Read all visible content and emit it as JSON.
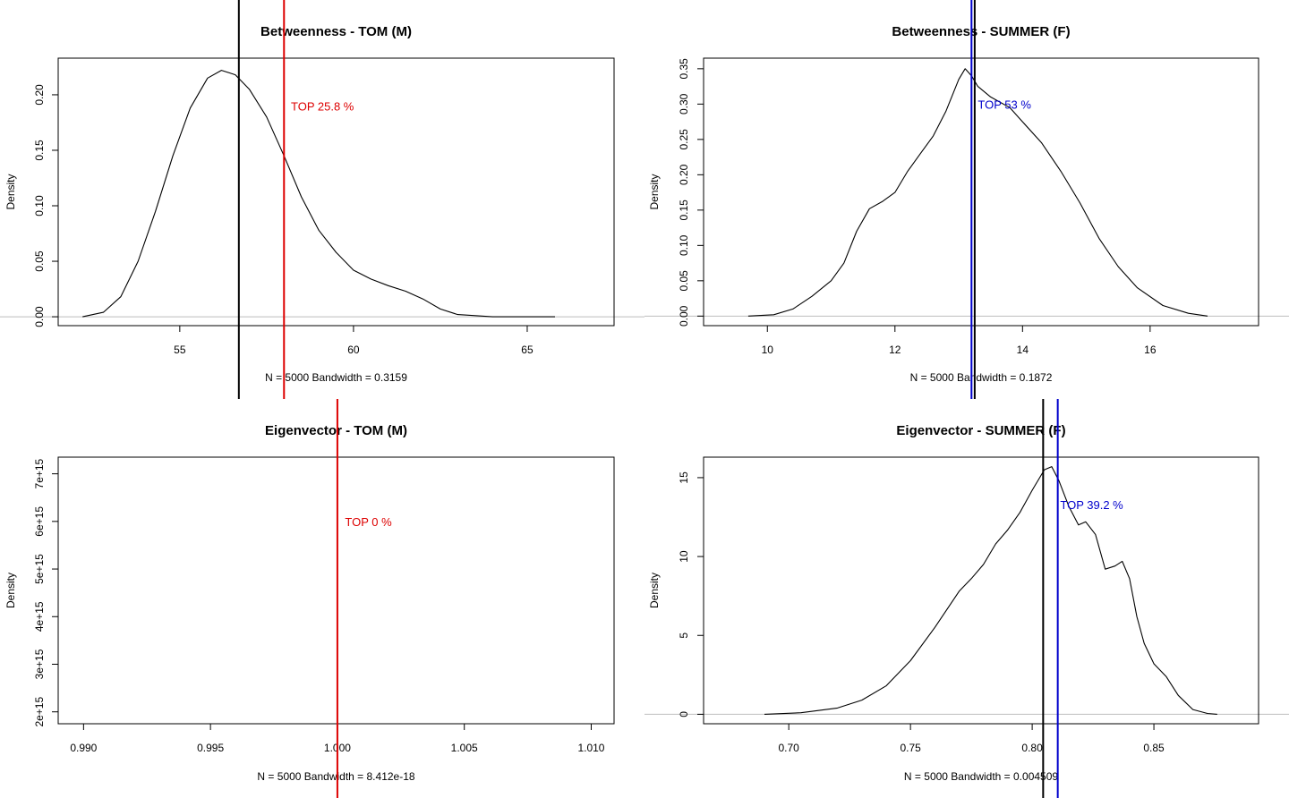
{
  "chart_data": [
    {
      "type": "line",
      "title": "Betweenness - TOM (M)",
      "xlabel": "N = 5000   Bandwidth = 0.3159",
      "ylabel": "Density",
      "xlim": [
        51.5,
        67.5
      ],
      "ylim": [
        -0.008,
        0.233
      ],
      "xticks": [
        55,
        60,
        65
      ],
      "xtick_labels": [
        "55",
        "60",
        "65"
      ],
      "yticks": [
        0.0,
        0.05,
        0.1,
        0.15,
        0.2
      ],
      "ytick_labels": [
        "0.00",
        "0.05",
        "0.10",
        "0.15",
        "0.20"
      ],
      "series": [
        {
          "x": [
            52.2,
            52.8,
            53.3,
            53.8,
            54.3,
            54.8,
            55.3,
            55.8,
            56.2,
            56.6,
            57.0,
            57.5,
            58.0,
            58.5,
            59.0,
            59.5,
            60.0,
            60.5,
            61.0,
            61.5,
            62.0,
            62.5,
            63.0,
            64.0,
            65.0,
            65.8
          ],
          "y": [
            0.0,
            0.004,
            0.018,
            0.05,
            0.095,
            0.145,
            0.188,
            0.215,
            0.222,
            0.218,
            0.205,
            0.18,
            0.145,
            0.108,
            0.078,
            0.058,
            0.042,
            0.034,
            0.028,
            0.023,
            0.016,
            0.007,
            0.002,
            0.0,
            0.0,
            0.0
          ]
        }
      ],
      "vlines": [
        {
          "x": 56.7,
          "color": "#000000"
        },
        {
          "x": 58.0,
          "color": "#dd0000"
        }
      ],
      "annotation": {
        "text": "TOP 25.8 %",
        "x": 58.2,
        "y": 0.19,
        "color": "#dd0000"
      }
    },
    {
      "type": "line",
      "title": "Betweenness - SUMMER (F)",
      "xlabel": "N = 5000   Bandwidth = 0.1872",
      "ylabel": "Density",
      "xlim": [
        9.0,
        17.7
      ],
      "ylim": [
        -0.0135,
        0.365
      ],
      "xticks": [
        10,
        12,
        14,
        16
      ],
      "xtick_labels": [
        "10",
        "12",
        "14",
        "16"
      ],
      "yticks": [
        0.0,
        0.05,
        0.1,
        0.15,
        0.2,
        0.25,
        0.3,
        0.35
      ],
      "ytick_labels": [
        "0.00",
        "0.05",
        "0.10",
        "0.15",
        "0.20",
        "0.25",
        "0.30",
        "0.35"
      ],
      "series": [
        {
          "x": [
            9.7,
            10.1,
            10.4,
            10.7,
            11.0,
            11.2,
            11.4,
            11.6,
            11.8,
            12.0,
            12.2,
            12.4,
            12.6,
            12.8,
            13.0,
            13.1,
            13.2,
            13.3,
            13.5,
            13.8,
            14.0,
            14.3,
            14.6,
            14.9,
            15.2,
            15.5,
            15.8,
            16.2,
            16.6,
            16.9
          ],
          "y": [
            0.0,
            0.002,
            0.01,
            0.028,
            0.05,
            0.075,
            0.12,
            0.152,
            0.162,
            0.175,
            0.205,
            0.23,
            0.255,
            0.29,
            0.335,
            0.35,
            0.34,
            0.325,
            0.31,
            0.295,
            0.275,
            0.245,
            0.205,
            0.16,
            0.11,
            0.07,
            0.04,
            0.015,
            0.004,
            0.0
          ]
        }
      ],
      "vlines": [
        {
          "x": 13.2,
          "color": "#0000cc"
        },
        {
          "x": 13.25,
          "color": "#000000"
        }
      ],
      "annotation": {
        "text": "TOP 53 %",
        "x": 13.3,
        "y": 0.3,
        "color": "#0000cc"
      }
    },
    {
      "type": "line",
      "title": "Eigenvector - TOM (M)",
      "xlabel": "N = 5000   Bandwidth = 8.412e-18",
      "ylabel": "Density",
      "xlim": [
        0.989,
        1.0109
      ],
      "ylim": [
        1750000000000000.0,
        7350000000000000.0
      ],
      "xticks": [
        0.99,
        0.995,
        1.0,
        1.005,
        1.01
      ],
      "xtick_labels": [
        "0.990",
        "0.995",
        "1.000",
        "1.005",
        "1.010"
      ],
      "yticks": [
        2000000000000000.0,
        3000000000000000.0,
        4000000000000000.0,
        5000000000000000.0,
        6000000000000000.0,
        7000000000000000.0
      ],
      "ytick_labels": [
        "2e+15",
        "3e+15",
        "4e+15",
        "5e+15",
        "6e+15",
        "7e+15"
      ],
      "series": [],
      "vlines": [
        {
          "x": 1.0,
          "color": "#dd0000"
        }
      ],
      "annotation": {
        "text": "TOP 0 %",
        "x": 1.0003,
        "y": 6000000000000000.0,
        "color": "#dd0000"
      }
    },
    {
      "type": "line",
      "title": "Eigenvector - SUMMER (F)",
      "xlabel": "N = 5000   Bandwidth = 0.004509",
      "ylabel": "Density",
      "xlim": [
        0.665,
        0.893
      ],
      "ylim": [
        -0.6,
        16.3
      ],
      "xticks": [
        0.7,
        0.75,
        0.8,
        0.85
      ],
      "xtick_labels": [
        "0.70",
        "0.75",
        "0.80",
        "0.85"
      ],
      "yticks": [
        0,
        5,
        10,
        15
      ],
      "ytick_labels": [
        "0",
        "5",
        "10",
        "15"
      ],
      "series": [
        {
          "x": [
            0.69,
            0.705,
            0.72,
            0.73,
            0.74,
            0.75,
            0.76,
            0.77,
            0.775,
            0.78,
            0.785,
            0.79,
            0.795,
            0.8,
            0.805,
            0.808,
            0.811,
            0.815,
            0.819,
            0.822,
            0.826,
            0.83,
            0.834,
            0.837,
            0.84,
            0.843,
            0.846,
            0.85,
            0.855,
            0.86,
            0.866,
            0.872,
            0.876
          ],
          "y": [
            0.0,
            0.1,
            0.4,
            0.9,
            1.8,
            3.4,
            5.5,
            7.8,
            8.6,
            9.5,
            10.8,
            11.7,
            12.8,
            14.2,
            15.5,
            15.7,
            14.8,
            13.2,
            12.0,
            12.2,
            11.4,
            9.2,
            9.4,
            9.7,
            8.6,
            6.2,
            4.5,
            3.2,
            2.4,
            1.2,
            0.3,
            0.05,
            0.0
          ]
        }
      ],
      "vlines": [
        {
          "x": 0.8045,
          "color": "#000000"
        },
        {
          "x": 0.8105,
          "color": "#0000cc"
        }
      ],
      "annotation": {
        "text": "TOP 39.2 %",
        "x": 0.8115,
        "y": 13.3,
        "color": "#0000cc"
      }
    }
  ]
}
